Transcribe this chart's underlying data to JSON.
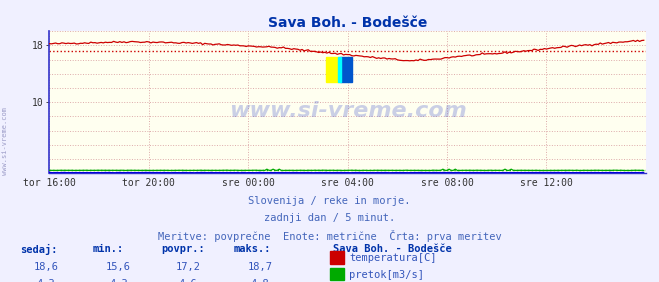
{
  "title": "Sava Boh. - Bodešče",
  "title_color": "#0033aa",
  "title_fontsize": 10,
  "bg_color": "#f0f0ff",
  "plot_bg_color": "#fffff0",
  "grid_color": "#ddaaaa",
  "xlim": [
    0,
    288
  ],
  "ylim": [
    0,
    20
  ],
  "ytick_positions": [
    10,
    18
  ],
  "ytick_labels": [
    "10",
    "18"
  ],
  "xtick_positions": [
    0,
    48,
    96,
    144,
    192,
    240
  ],
  "xtick_labels": [
    "tor 16:00",
    "tor 20:00",
    "sre 00:00",
    "sre 04:00",
    "sre 08:00",
    "sre 12:00"
  ],
  "temp_color": "#cc0000",
  "flow_color": "#00aa00",
  "height_color": "#0000dd",
  "avg_temp": 17.2,
  "avg_flow_scaled": 0.46,
  "cur_temp": 18.6,
  "cur_flow": 4.3,
  "min_temp": 15.6,
  "max_temp": 18.7,
  "avg_temp_val": 17.2,
  "min_flow": 4.3,
  "max_flow": 4.8,
  "avg_flow": 4.6,
  "watermark": "www.si-vreme.com",
  "watermark_color": "#4455cc",
  "subtitle1": "Slovenija / reke in morje.",
  "subtitle2": "zadnji dan / 5 minut.",
  "subtitle3": "Meritve: povprečne  Enote: metrične  Črta: prva meritev",
  "subtitle_color": "#4466bb",
  "legend_title": "Sava Boh. - Bodešče",
  "stat_headers": [
    "sedaj:",
    "min.:",
    "povpr.:",
    "maks.:"
  ],
  "stat_color": "#0033aa",
  "stat_val_color": "#3355bb",
  "spine_color": "#3333cc",
  "logo_yellow": "#ffff00",
  "logo_cyan": "#00ffff",
  "logo_blue": "#0055cc"
}
